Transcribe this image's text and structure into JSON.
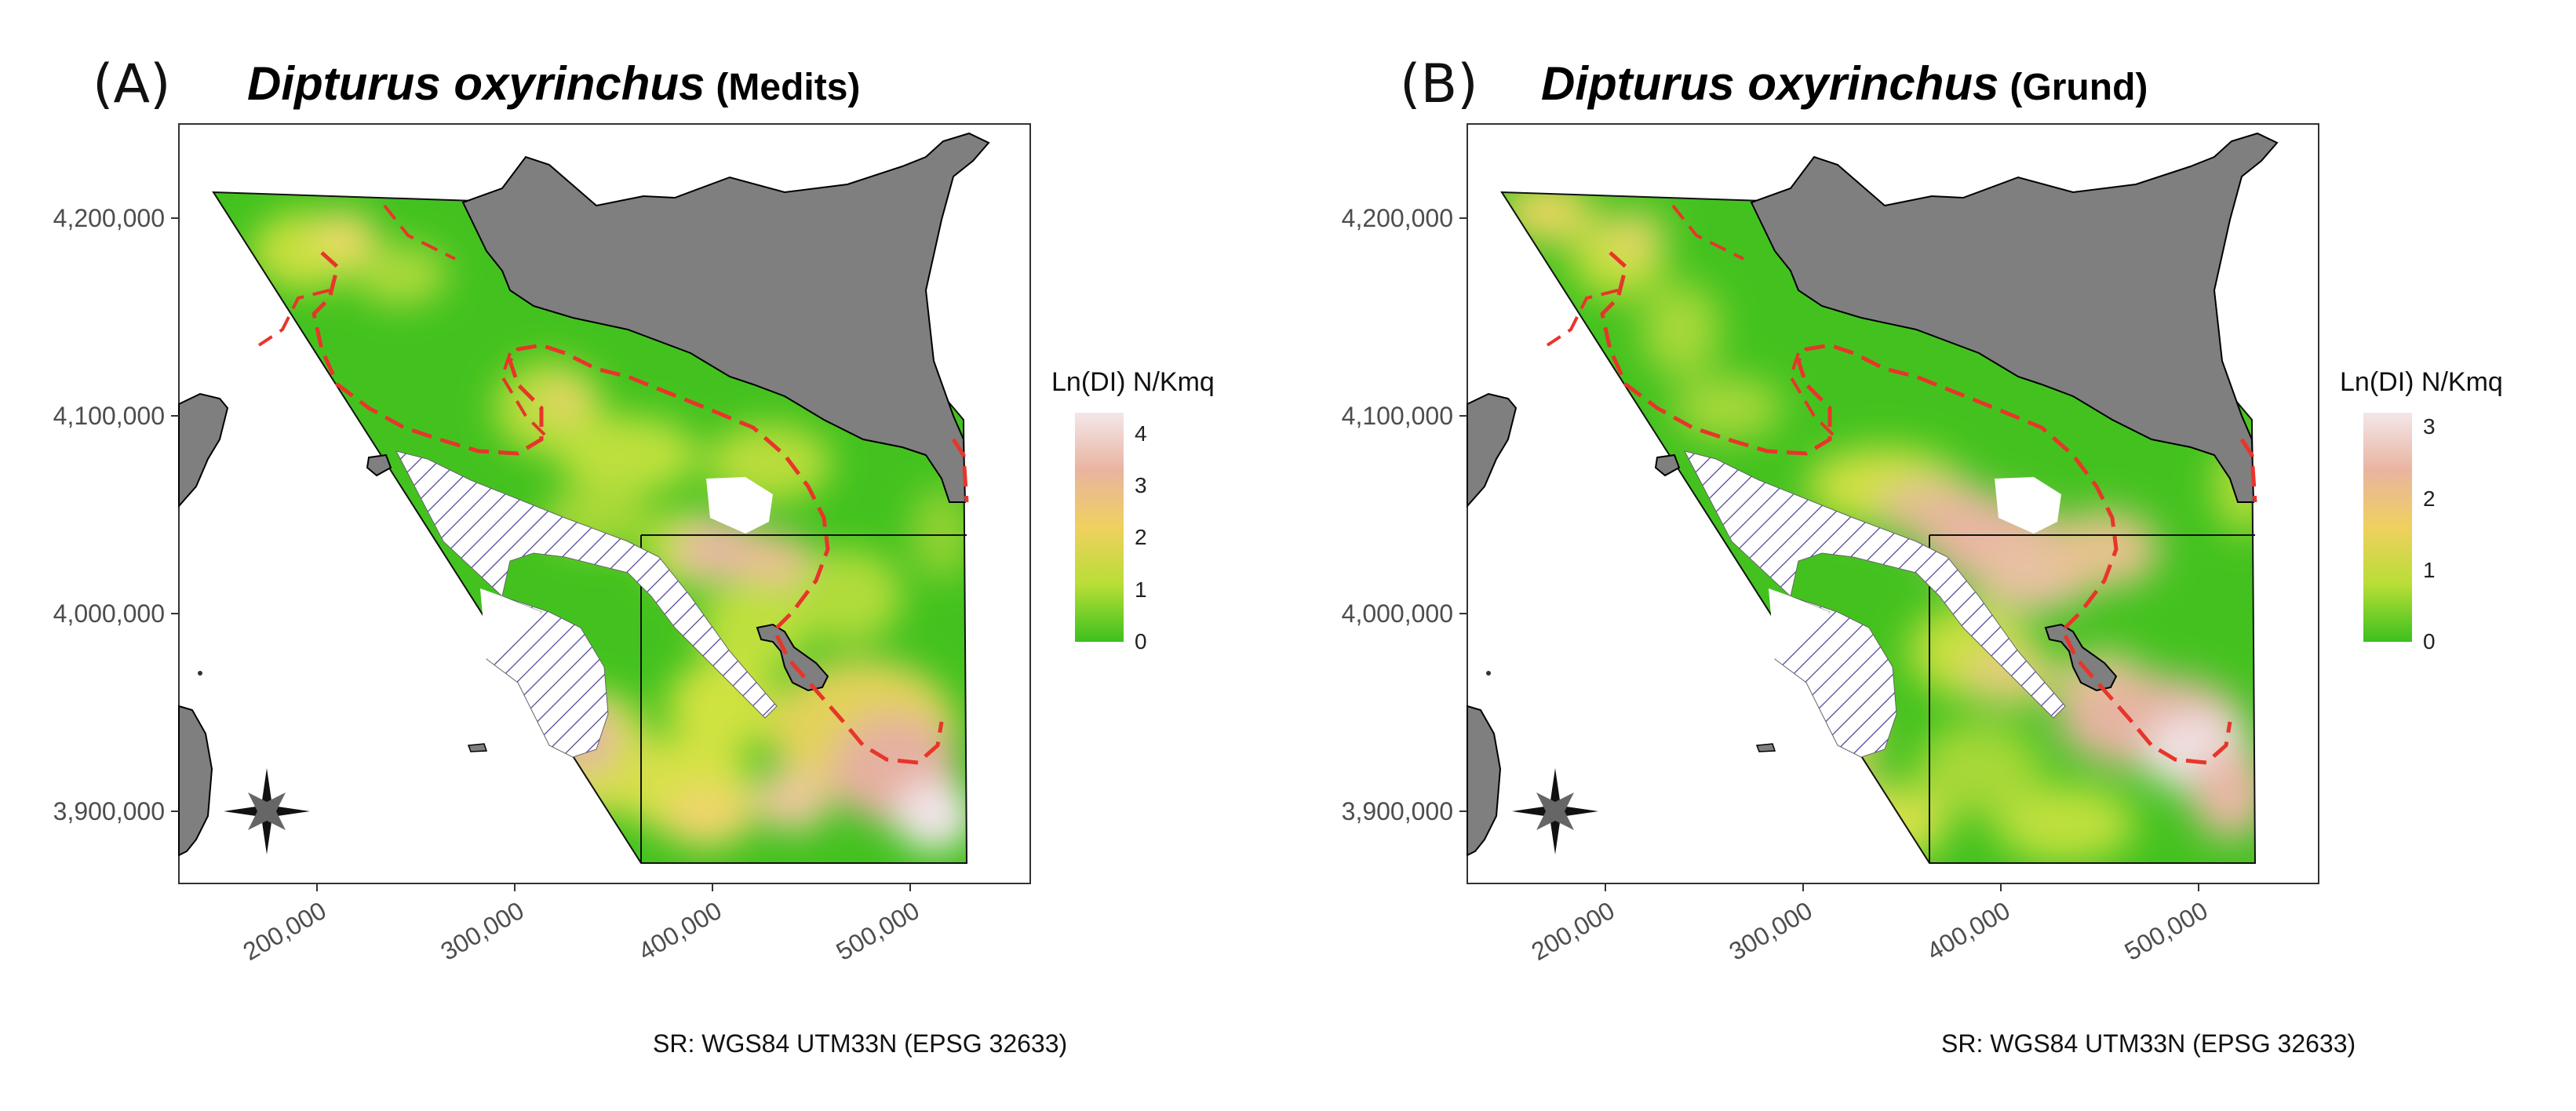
{
  "panels": [
    {
      "letter": "(A)",
      "species": "Dipturus oxyrinchus",
      "survey": "(Medits)",
      "legend": {
        "title": "Ln(DI) N/Kmq",
        "ticks": [
          "4",
          "3",
          "2",
          "1",
          "0"
        ],
        "max": 4.4,
        "colors": [
          "#f3e7ea",
          "#e9b4a0",
          "#f0d060",
          "#b8de36",
          "#3cc01e"
        ]
      },
      "y_ticks": [
        "4,200,000",
        "4,100,000",
        "4,000,000",
        "3,900,000"
      ],
      "x_ticks": [
        "200,000",
        "300,000",
        "400,000",
        "500,000"
      ],
      "crs": "SR: WGS84 UTM33N (EPSG 32633)"
    },
    {
      "letter": "(B)",
      "species": "Dipturus oxyrinchus",
      "survey": "(Grund)",
      "legend": {
        "title": "Ln(DI) N/Kmq",
        "ticks": [
          "3",
          "2",
          "1",
          "0"
        ],
        "max": 3.2,
        "colors": [
          "#f3e7ea",
          "#e9b4a0",
          "#f0d060",
          "#b8de36",
          "#3cc01e"
        ]
      },
      "y_ticks": [
        "4,200,000",
        "4,100,000",
        "4,000,000",
        "3,900,000"
      ],
      "x_ticks": [
        "200,000",
        "300,000",
        "400,000",
        "500,000"
      ],
      "crs": "SR: WGS84 UTM33N (EPSG 32633)"
    }
  ],
  "colors": {
    "land": "#7f7f7f",
    "boundary": "#e8352a",
    "hatch": "#4a3d8f",
    "axis_text": "#4d4d4d"
  }
}
